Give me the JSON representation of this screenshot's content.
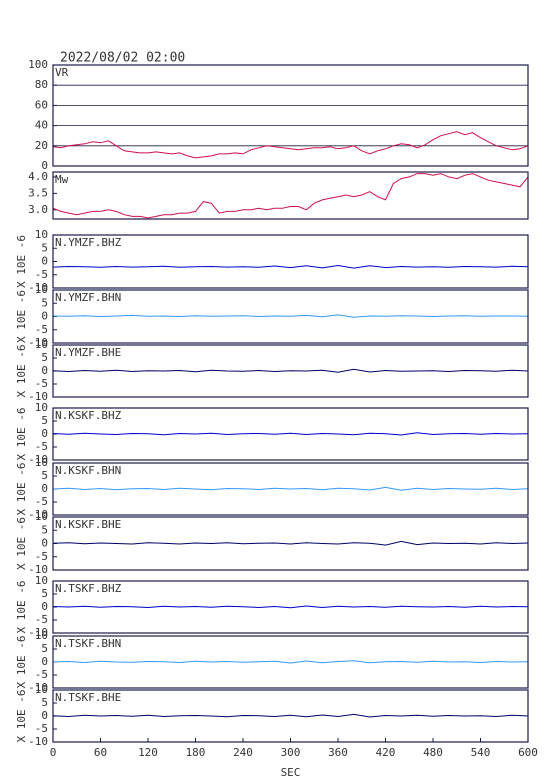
{
  "chart_data": [
    {
      "type": "line",
      "title": "2022/08/02 02:00",
      "label": "VR",
      "color": "#d0104c",
      "grid": true,
      "x": [
        0,
        10,
        20,
        30,
        40,
        50,
        60,
        70,
        80,
        90,
        100,
        110,
        120,
        130,
        140,
        150,
        160,
        170,
        180,
        190,
        200,
        210,
        220,
        230,
        240,
        250,
        260,
        270,
        280,
        290,
        300,
        310,
        320,
        330,
        340,
        350,
        360,
        370,
        380,
        390,
        400,
        410,
        420,
        430,
        440,
        450,
        460,
        470,
        480,
        490,
        500,
        510,
        520,
        530,
        540,
        550,
        560,
        570,
        580,
        590,
        600
      ],
      "values": [
        19,
        18,
        20,
        21,
        22,
        24,
        23,
        25,
        20,
        15,
        14,
        13,
        13,
        14,
        13,
        12,
        13,
        10,
        8,
        9,
        10,
        12,
        12,
        13,
        12,
        16,
        18,
        20,
        19,
        18,
        17,
        16,
        17,
        18,
        18,
        19,
        17,
        18,
        20,
        15,
        12,
        15,
        17,
        20,
        22,
        21,
        18,
        21,
        26,
        30,
        32,
        34,
        31,
        33,
        28,
        24,
        20,
        18,
        16,
        17,
        20
      ],
      "xlim": [
        0,
        600
      ],
      "ylim": [
        0,
        100
      ],
      "yticks": [
        0,
        20,
        40,
        60,
        80,
        100
      ]
    },
    {
      "type": "line",
      "label": "Mw",
      "color": "#d0104c",
      "grid": false,
      "x": [
        0,
        10,
        20,
        30,
        40,
        50,
        60,
        70,
        80,
        90,
        100,
        110,
        120,
        130,
        140,
        150,
        160,
        170,
        180,
        190,
        200,
        210,
        220,
        230,
        240,
        250,
        260,
        270,
        280,
        290,
        300,
        310,
        320,
        330,
        340,
        350,
        360,
        370,
        380,
        390,
        400,
        410,
        420,
        430,
        440,
        450,
        460,
        470,
        480,
        490,
        500,
        510,
        520,
        530,
        540,
        550,
        560,
        570,
        580,
        590,
        600
      ],
      "values": [
        3.05,
        2.95,
        2.9,
        2.85,
        2.9,
        2.95,
        2.95,
        3.0,
        2.95,
        2.85,
        2.8,
        2.8,
        2.75,
        2.8,
        2.85,
        2.85,
        2.9,
        2.9,
        2.95,
        3.25,
        3.2,
        2.9,
        2.95,
        2.95,
        3.0,
        3.0,
        3.05,
        3.0,
        3.05,
        3.05,
        3.1,
        3.1,
        3.0,
        3.2,
        3.3,
        3.35,
        3.4,
        3.45,
        3.4,
        3.45,
        3.55,
        3.4,
        3.3,
        3.8,
        3.95,
        4.0,
        4.1,
        4.1,
        4.05,
        4.1,
        4.0,
        3.95,
        4.05,
        4.1,
        4.0,
        3.9,
        3.85,
        3.8,
        3.75,
        3.7,
        4.0
      ],
      "xlim": [
        0,
        600
      ],
      "ylim": [
        2.72,
        4.15
      ],
      "yticks": [
        {
          "value": 3,
          "label": "3.0"
        },
        3.5,
        {
          "value": 4,
          "label": "4.0"
        }
      ]
    },
    {
      "type": "line",
      "label": "N.YMZF.BHZ",
      "ylabel": "X 10E -6",
      "color": "#0000cc",
      "x": [
        0,
        20,
        40,
        60,
        80,
        100,
        120,
        140,
        160,
        180,
        200,
        220,
        240,
        260,
        280,
        300,
        320,
        340,
        360,
        380,
        400,
        420,
        440,
        460,
        480,
        500,
        520,
        540,
        560,
        580,
        600
      ],
      "values": [
        -2.1,
        -1.9,
        -2.0,
        -2.2,
        -1.9,
        -2.1,
        -2.0,
        -1.8,
        -2.2,
        -2.0,
        -1.9,
        -2.1,
        -2.0,
        -2.2,
        -1.7,
        -2.3,
        -1.6,
        -2.4,
        -1.5,
        -2.5,
        -1.6,
        -2.3,
        -1.9,
        -2.1,
        -2.0,
        -2.2,
        -1.9,
        -2.0,
        -2.1,
        -1.8,
        -2.0
      ],
      "xlim": [
        0,
        600
      ],
      "ylim": [
        -10,
        10
      ],
      "yticks": [
        -10,
        -5,
        0,
        5,
        10
      ]
    },
    {
      "type": "line",
      "label": "N.YMZF.BHN",
      "ylabel": "X 10E -6",
      "color": "#3399ff",
      "x": [
        0,
        20,
        40,
        60,
        80,
        100,
        120,
        140,
        160,
        180,
        200,
        220,
        240,
        260,
        280,
        300,
        320,
        340,
        360,
        380,
        400,
        420,
        440,
        460,
        480,
        500,
        520,
        540,
        560,
        580,
        600
      ],
      "values": [
        0.2,
        0.1,
        0.3,
        0.0,
        0.2,
        0.4,
        0.1,
        0.2,
        0.0,
        0.3,
        0.1,
        0.2,
        0.3,
        0.0,
        0.2,
        0.1,
        0.4,
        -0.1,
        0.6,
        -0.3,
        0.2,
        0.1,
        0.3,
        0.2,
        0.0,
        0.2,
        0.3,
        0.1,
        0.2,
        0.2,
        0.1
      ],
      "xlim": [
        0,
        600
      ],
      "ylim": [
        -10,
        10
      ],
      "yticks": [
        -10,
        -5,
        0,
        5,
        10
      ]
    },
    {
      "type": "line",
      "label": "N.YMZF.BHE",
      "ylabel": "X 10E -6",
      "color": "#000066",
      "x": [
        0,
        20,
        40,
        60,
        80,
        100,
        120,
        140,
        160,
        180,
        200,
        220,
        240,
        260,
        280,
        300,
        320,
        340,
        360,
        380,
        400,
        420,
        440,
        460,
        480,
        500,
        520,
        540,
        560,
        580,
        600
      ],
      "values": [
        0.1,
        -0.2,
        0.2,
        -0.1,
        0.3,
        -0.2,
        0.1,
        0.0,
        0.2,
        -0.3,
        0.3,
        0.0,
        -0.1,
        0.2,
        -0.2,
        0.1,
        0.0,
        0.3,
        -0.5,
        0.7,
        -0.4,
        0.2,
        -0.1,
        0.0,
        0.1,
        -0.2,
        0.2,
        0.1,
        -0.1,
        0.3,
        0.0
      ],
      "xlim": [
        0,
        600
      ],
      "ylim": [
        -10,
        10
      ],
      "yticks": [
        -10,
        -5,
        0,
        5,
        10
      ]
    },
    {
      "type": "line",
      "label": "N.KSKF.BHZ",
      "ylabel": "X 10E -6",
      "color": "#0000cc",
      "x": [
        0,
        20,
        40,
        60,
        80,
        100,
        120,
        140,
        160,
        180,
        200,
        220,
        240,
        260,
        280,
        300,
        320,
        340,
        360,
        380,
        400,
        420,
        440,
        460,
        480,
        500,
        520,
        540,
        560,
        580,
        600
      ],
      "values": [
        0.2,
        -0.1,
        0.3,
        0.0,
        -0.2,
        0.2,
        0.1,
        -0.3,
        0.2,
        0.0,
        0.3,
        -0.2,
        0.1,
        0.2,
        -0.1,
        0.3,
        -0.2,
        0.2,
        0.0,
        -0.3,
        0.3,
        0.1,
        -0.4,
        0.5,
        -0.2,
        0.1,
        0.2,
        -0.1,
        0.2,
        0.0,
        0.1
      ],
      "xlim": [
        0,
        600
      ],
      "ylim": [
        -10,
        10
      ],
      "yticks": [
        -10,
        -5,
        0,
        5,
        10
      ]
    },
    {
      "type": "line",
      "label": "N.KSKF.BHN",
      "ylabel": "X 10E -6",
      "color": "#3399ff",
      "x": [
        0,
        20,
        40,
        60,
        80,
        100,
        120,
        140,
        160,
        180,
        200,
        220,
        240,
        260,
        280,
        300,
        320,
        340,
        360,
        380,
        400,
        420,
        440,
        460,
        480,
        500,
        520,
        540,
        560,
        580,
        600
      ],
      "values": [
        0.0,
        0.3,
        -0.2,
        0.2,
        -0.3,
        0.1,
        0.2,
        -0.2,
        0.3,
        0.0,
        -0.3,
        0.2,
        0.1,
        -0.2,
        0.3,
        0.0,
        0.2,
        -0.3,
        0.3,
        0.1,
        -0.4,
        0.6,
        -0.5,
        0.3,
        -0.2,
        0.2,
        0.0,
        -0.1,
        0.3,
        -0.2,
        0.1
      ],
      "xlim": [
        0,
        600
      ],
      "ylim": [
        -10,
        10
      ],
      "yticks": [
        -10,
        -5,
        0,
        5,
        10
      ]
    },
    {
      "type": "line",
      "label": "N.KSKF.BHE",
      "ylabel": "X 10E -6",
      "color": "#000066",
      "x": [
        0,
        20,
        40,
        60,
        80,
        100,
        120,
        140,
        160,
        180,
        200,
        220,
        240,
        260,
        280,
        300,
        320,
        340,
        360,
        380,
        400,
        420,
        440,
        460,
        480,
        500,
        520,
        540,
        560,
        580,
        600
      ],
      "values": [
        0.1,
        0.3,
        -0.1,
        0.2,
        0.0,
        -0.2,
        0.3,
        0.1,
        -0.2,
        0.2,
        0.0,
        0.3,
        -0.1,
        0.1,
        0.2,
        -0.2,
        0.3,
        0.0,
        -0.2,
        0.3,
        0.1,
        -0.6,
        0.8,
        -0.4,
        0.2,
        0.0,
        0.1,
        -0.2,
        0.3,
        0.0,
        0.2
      ],
      "xlim": [
        0,
        600
      ],
      "ylim": [
        -10,
        10
      ],
      "yticks": [
        -10,
        -5,
        0,
        5,
        10
      ]
    },
    {
      "type": "line",
      "label": "N.TSKF.BHZ",
      "ylabel": "X 10E -6",
      "color": "#0000cc",
      "x": [
        0,
        20,
        40,
        60,
        80,
        100,
        120,
        140,
        160,
        180,
        200,
        220,
        240,
        260,
        280,
        300,
        320,
        340,
        360,
        380,
        400,
        420,
        440,
        460,
        480,
        500,
        520,
        540,
        560,
        580,
        600
      ],
      "values": [
        0.2,
        0.0,
        0.3,
        -0.1,
        0.2,
        0.1,
        -0.2,
        0.3,
        0.0,
        0.2,
        -0.1,
        0.3,
        0.1,
        -0.2,
        0.2,
        -0.3,
        0.4,
        -0.2,
        0.3,
        0.0,
        0.2,
        -0.1,
        0.3,
        0.1,
        0.0,
        0.2,
        -0.1,
        0.3,
        0.0,
        0.2,
        0.1
      ],
      "xlim": [
        0,
        600
      ],
      "ylim": [
        -10,
        10
      ],
      "yticks": [
        -10,
        -5,
        0,
        5,
        10
      ]
    },
    {
      "type": "line",
      "label": "N.TSKF.BHN",
      "ylabel": "X 10E -6",
      "color": "#3399ff",
      "x": [
        0,
        20,
        40,
        60,
        80,
        100,
        120,
        140,
        160,
        180,
        200,
        220,
        240,
        260,
        280,
        300,
        320,
        340,
        360,
        380,
        400,
        420,
        440,
        460,
        480,
        500,
        520,
        540,
        560,
        580,
        600
      ],
      "values": [
        0.0,
        0.2,
        -0.2,
        0.3,
        0.0,
        -0.1,
        0.2,
        0.1,
        -0.2,
        0.3,
        0.0,
        0.2,
        -0.1,
        0.1,
        0.3,
        -0.4,
        0.4,
        -0.3,
        0.2,
        0.5,
        -0.3,
        0.1,
        0.2,
        -0.1,
        0.3,
        0.0,
        0.1,
        -0.2,
        0.2,
        0.0,
        0.1
      ],
      "xlim": [
        0,
        600
      ],
      "ylim": [
        -10,
        10
      ],
      "yticks": [
        -10,
        -5,
        0,
        5,
        10
      ]
    },
    {
      "type": "line",
      "label": "N.TSKF.BHE",
      "ylabel": "X 10E -6",
      "color": "#000066",
      "xlabel": "SEC",
      "x": [
        0,
        20,
        40,
        60,
        80,
        100,
        120,
        140,
        160,
        180,
        200,
        220,
        240,
        260,
        280,
        300,
        320,
        340,
        360,
        380,
        400,
        420,
        440,
        460,
        480,
        500,
        520,
        540,
        560,
        580,
        600
      ],
      "values": [
        0.1,
        -0.2,
        0.3,
        0.0,
        0.2,
        -0.1,
        0.3,
        -0.2,
        0.1,
        0.2,
        0.0,
        -0.3,
        0.2,
        0.1,
        -0.2,
        0.3,
        -0.3,
        0.4,
        -0.2,
        0.6,
        -0.4,
        0.2,
        0.0,
        0.3,
        -0.1,
        0.2,
        0.0,
        0.1,
        -0.2,
        0.3,
        0.0
      ],
      "xlim": [
        0,
        600
      ],
      "ylim": [
        -10,
        10
      ],
      "xticks": [
        0,
        60,
        120,
        180,
        240,
        300,
        360,
        420,
        480,
        540,
        600
      ],
      "yticks": [
        -10,
        -5,
        0,
        5,
        10
      ]
    }
  ]
}
